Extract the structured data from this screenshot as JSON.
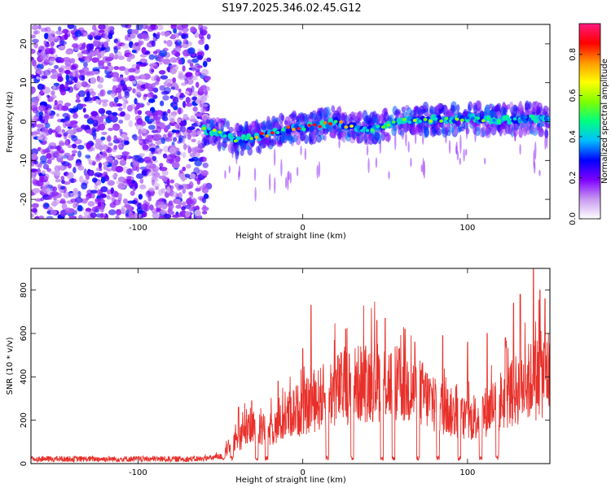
{
  "title": "S197.2025.346.02.45.G12",
  "chart_data": [
    {
      "type": "heatmap",
      "title": "S197.2025.346.02.45.G12",
      "xlabel": "Height of straight line (km)",
      "ylabel": "Frequency (Hz)",
      "xlim": [
        -165,
        150
      ],
      "ylim": [
        -25,
        25
      ],
      "xticks": [
        -100,
        0,
        100
      ],
      "yticks": [
        -20,
        -10,
        0,
        10,
        20
      ],
      "xtick_labels": [
        "-100",
        "0",
        "100"
      ],
      "ytick_labels": [
        "-20",
        "-10",
        "0",
        "10",
        "20"
      ],
      "noise_region_x": [
        -165,
        -57
      ],
      "signal_ridge": {
        "x": [
          -60,
          -50,
          -40,
          -30,
          -20,
          -10,
          0,
          10,
          20,
          30,
          40,
          50,
          60,
          70,
          80,
          90,
          100,
          110,
          120,
          130,
          140,
          150
        ],
        "freq": [
          -2,
          -3,
          -5,
          -4,
          -3,
          -2,
          -1.5,
          -1,
          0,
          -1.5,
          -2,
          -1,
          0,
          0.5,
          0.5,
          0.5,
          1,
          0.5,
          0.5,
          0.5,
          1,
          0
        ]
      },
      "colorbar": {
        "label": "Normalized spectral amplitude",
        "range": [
          0,
          0.95
        ],
        "ticks": [
          0.0,
          0.2,
          0.4,
          0.6,
          0.8
        ],
        "tick_labels": [
          "0.0",
          "0.2",
          "0.4",
          "0.6",
          "0.8"
        ],
        "colors": [
          "#ffffff",
          "#c89af0",
          "#7f00ff",
          "#0000ff",
          "#00bfff",
          "#00ff80",
          "#80ff00",
          "#ffff00",
          "#ff9900",
          "#ff0000",
          "#ff1a80"
        ]
      }
    },
    {
      "type": "line",
      "xlabel": "Height of straight line (km)",
      "ylabel": "SNR (10 * v/v)",
      "xlim": [
        -165,
        150
      ],
      "ylim": [
        0,
        900
      ],
      "xticks": [
        -100,
        0,
        100
      ],
      "yticks": [
        0,
        200,
        400,
        600,
        800
      ],
      "xtick_labels": [
        "-100",
        "0",
        "100"
      ],
      "ytick_labels": [
        "0",
        "200",
        "400",
        "600",
        "800"
      ],
      "line_color": "#e8302a",
      "envelope": {
        "x": [
          -165,
          -60,
          -50,
          -45,
          -40,
          -35,
          -30,
          -25,
          -20,
          -15,
          -10,
          -5,
          0,
          10,
          20,
          30,
          40,
          50,
          60,
          70,
          80,
          90,
          100,
          110,
          120,
          130,
          140,
          150
        ],
        "snr": [
          25,
          25,
          35,
          70,
          120,
          160,
          180,
          170,
          175,
          190,
          240,
          270,
          280,
          330,
          380,
          400,
          420,
          420,
          400,
          370,
          310,
          260,
          220,
          260,
          320,
          380,
          430,
          480
        ]
      },
      "peaks": [
        {
          "x": -39,
          "snr": 260
        },
        {
          "x": -31,
          "snr": 290
        },
        {
          "x": -15,
          "snr": 380
        },
        {
          "x": 0,
          "snr": 530
        },
        {
          "x": 5,
          "snr": 730
        },
        {
          "x": 26,
          "snr": 620
        },
        {
          "x": 45,
          "snr": 660
        },
        {
          "x": 50,
          "snr": 670
        },
        {
          "x": 62,
          "snr": 620
        },
        {
          "x": 68,
          "snr": 560
        },
        {
          "x": 85,
          "snr": 590
        },
        {
          "x": 100,
          "snr": 560
        },
        {
          "x": 112,
          "snr": 600
        },
        {
          "x": 123,
          "snr": 580
        },
        {
          "x": 128,
          "snr": 740
        },
        {
          "x": 132,
          "snr": 780
        },
        {
          "x": 140,
          "snr": 900
        },
        {
          "x": 144,
          "snr": 800
        },
        {
          "x": 147,
          "snr": 760
        }
      ],
      "dropouts_x": [
        -48,
        -43,
        -28,
        -22,
        15,
        30,
        48,
        55,
        70,
        82,
        95,
        108,
        118
      ]
    }
  ]
}
